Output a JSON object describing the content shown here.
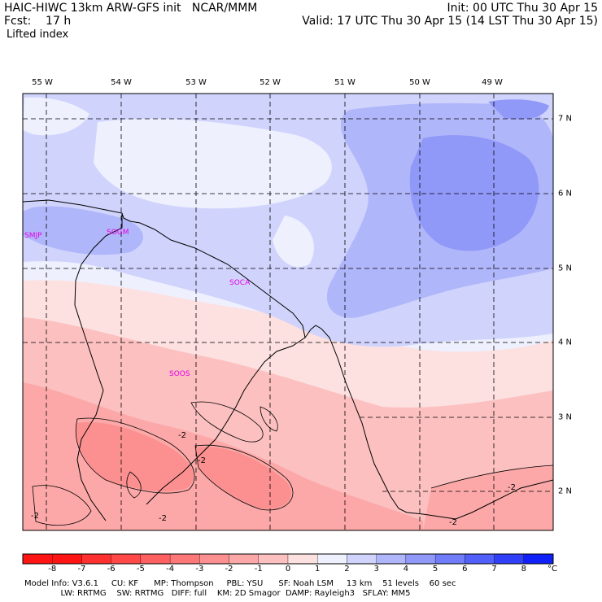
{
  "header": {
    "model_line": "HAIC-HIWC 13km ARW-GFS init   NCAR/MMM",
    "fcst_line": "Fcst:    17 h",
    "field_name": "Lifted index",
    "init_line": "Init: 00 UTC Thu 30 Apr 15",
    "valid_line": "Valid: 17 UTC Thu 30 Apr 15 (14 LST Thu 30 Apr 15)"
  },
  "map": {
    "longitude_labels": [
      "55 W",
      "54 W",
      "53 W",
      "52 W",
      "51 W",
      "50 W",
      "49 W"
    ],
    "latitude_labels": [
      "7 N",
      "6 N",
      "5 N",
      "4 N",
      "3 N",
      "2 N"
    ],
    "station_labels": [
      "SMJP",
      "SOGM",
      "SOCA",
      "SOOS"
    ],
    "contour_labels": [
      "-2",
      "-2",
      "-2",
      "-2",
      "-2",
      "-2"
    ],
    "colors": {
      "land_boundary": "#000000",
      "station_text": "#e600e6",
      "grid": "#000000"
    }
  },
  "colorbar": {
    "tick_labels": [
      "-8",
      "-7",
      "-6",
      "-5",
      "-4",
      "-3",
      "-2",
      "-1",
      "0",
      "1",
      "2",
      "3",
      "4",
      "5",
      "6",
      "7",
      "8"
    ],
    "unit": "°C",
    "colors": [
      "#ff1414",
      "#ff3030",
      "#ff4848",
      "#fd6060",
      "#fc7878",
      "#fc9090",
      "#fca8a8",
      "#fcc0c0",
      "#fde0e0",
      "#eef0fe",
      "#d0d4fc",
      "#b0b6fa",
      "#9098f8",
      "#707cf8",
      "#5060f8",
      "#3040f8",
      "#1020f8"
    ]
  },
  "footer": {
    "line1": "Model Info: V3.6.1     CU: KF      MP: Thompson     PBL: YSU      SF: Noah LSM     13 km    51 levels    60 sec",
    "line2": "              LW: RRTMG    SW: RRTMG   DIFF: full    KM: 2D Smagor  DAMP: Rayleigh3   SFLAY: MM5"
  }
}
